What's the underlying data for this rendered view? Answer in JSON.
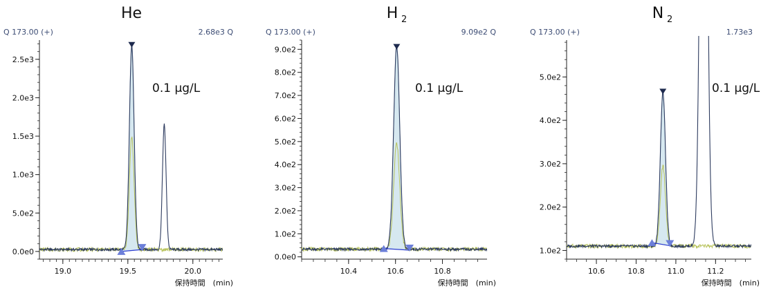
{
  "chart_data": [
    {
      "type": "line",
      "title": "He",
      "title_sub": "",
      "header_left": "Q 173.00 (+)",
      "header_right": "2.68e3 Q",
      "annotation": "0.1 µg/L",
      "xlabel": "保持時間　(min)",
      "xlim": [
        18.82,
        20.23
      ],
      "ylim": [
        -100,
        2750
      ],
      "x_ticks": [
        19.0,
        19.5,
        20.0
      ],
      "x_tick_labels": [
        "19.0",
        "19.5",
        "20.0"
      ],
      "x_tick_step": 0.05,
      "y_ticks": [
        0,
        500,
        1000,
        1500,
        2000,
        2500
      ],
      "y_tick_labels": [
        "0.0e0",
        "5.0e2",
        "1.0e3",
        "1.5e3",
        "2.0e3",
        "2.5e3"
      ],
      "y_minor_step": 100,
      "peaks": [
        {
          "x": 19.53,
          "height": 2670,
          "sigma": 0.018
        },
        {
          "x": 19.78,
          "height": 1625,
          "sigma": 0.014
        }
      ],
      "baseline": 25,
      "secondary_scale": 0.55,
      "integration": {
        "x_start": 19.45,
        "y_start": 0,
        "x_end": 19.61,
        "y_end": 25
      },
      "apex_marker": {
        "x": 19.53,
        "y": 2680
      },
      "grid": false
    },
    {
      "type": "line",
      "title": "H",
      "title_sub": "2",
      "header_left": "Q 173.00 (+)",
      "header_right": "9.09e2 Q",
      "annotation": "0.1 µg/L",
      "xlabel": "保持時間　(min)",
      "xlim": [
        10.2,
        10.99
      ],
      "ylim": [
        -10,
        940
      ],
      "x_ticks": [
        10.4,
        10.6,
        10.8
      ],
      "x_tick_labels": [
        "10.4",
        "10.6",
        "10.8"
      ],
      "x_tick_step": 0.05,
      "y_ticks": [
        0,
        100,
        200,
        300,
        400,
        500,
        600,
        700,
        800,
        900
      ],
      "y_tick_labels": [
        "0.0e0",
        "1.0e2",
        "2.0e2",
        "3.0e2",
        "4.0e2",
        "5.0e2",
        "6.0e2",
        "7.0e2",
        "8.0e2",
        "9.0e2"
      ],
      "y_minor_step": 20,
      "peaks": [
        {
          "x": 10.605,
          "height": 880,
          "sigma": 0.013
        }
      ],
      "baseline": 33,
      "secondary_scale": 0.52,
      "integration": {
        "x_start": 10.55,
        "y_start": 36,
        "x_end": 10.66,
        "y_end": 29
      },
      "apex_marker": {
        "x": 10.605,
        "y": 908
      },
      "grid": false
    },
    {
      "type": "line",
      "title": "N",
      "title_sub": "2",
      "header_left": "Q 173.00 (+)",
      "header_right": "1.73e3",
      "annotation": "0.1 µg/L",
      "xlabel": "保持時間　(min)",
      "xlim": [
        10.45,
        11.38
      ],
      "ylim": [
        80,
        585
      ],
      "x_ticks": [
        10.6,
        10.8,
        11.0,
        11.2
      ],
      "x_tick_labels": [
        "10.6",
        "10.8",
        "11.0",
        "11.2"
      ],
      "x_tick_step": 0.05,
      "y_ticks": [
        100,
        200,
        300,
        400,
        500
      ],
      "y_tick_labels": [
        "1.0e2",
        "2.0e2",
        "3.0e2",
        "4.0e2",
        "5.0e2"
      ],
      "y_minor_step": 20,
      "peaks": [
        {
          "x": 10.935,
          "height": 355,
          "sigma": 0.013
        },
        {
          "x": 11.14,
          "height": 1620,
          "sigma": 0.016
        }
      ],
      "baseline": 110,
      "secondary_scale": 0.52,
      "integration": {
        "x_start": 10.88,
        "y_start": 118,
        "x_end": 10.97,
        "y_end": 111
      },
      "apex_marker": {
        "x": 10.935,
        "y": 465
      },
      "grid": false
    }
  ],
  "colors": {
    "trace": "#2c3a5e",
    "secondary_trace": "#b7c25a",
    "fill": "#d6e8f0",
    "fill_edge": "#7fa8c4",
    "marker_dark": "#1e2a4e",
    "marker_light": "#6c7fd9",
    "axis": "#222222",
    "header_text": "#3b4b73"
  }
}
